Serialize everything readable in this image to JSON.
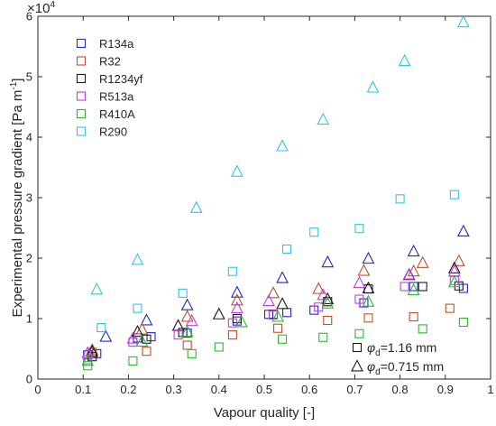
{
  "chart_data": {
    "type": "scatter",
    "xlabel": "Vapour quality [-]",
    "ylabel": "Experimental pressure gradient [Pa m",
    "ylabel_sup": "-1",
    "ylabel_close": "]",
    "y_multiplier_base": "×10",
    "y_multiplier_exp": "4",
    "xlim": [
      0,
      1
    ],
    "ylim": [
      0,
      60000
    ],
    "xticks": [
      "0",
      "0.1",
      "0.2",
      "0.3",
      "0.4",
      "0.5",
      "0.6",
      "0.7",
      "0.8",
      "0.9",
      "1"
    ],
    "yticks": [
      "0",
      "1",
      "2",
      "3",
      "4",
      "5",
      "6"
    ],
    "legend_position": "top-left",
    "grid": false,
    "marker_legend": [
      {
        "marker": "square",
        "prefix": "φ",
        "sub": "d",
        "text": "=1.16 mm"
      },
      {
        "marker": "triangle",
        "prefix": "φ",
        "sub": "d",
        "text": "=0.715 mm"
      }
    ],
    "series": [
      {
        "name": "R134a",
        "color": "#2626c8",
        "square": [
          [
            0.11,
            4000
          ],
          [
            0.13,
            4200
          ],
          [
            0.22,
            6800
          ],
          [
            0.25,
            7000
          ],
          [
            0.33,
            7600
          ],
          [
            0.44,
            9600
          ],
          [
            0.51,
            10700
          ],
          [
            0.55,
            11000
          ],
          [
            0.61,
            11400
          ],
          [
            0.72,
            12600
          ],
          [
            0.83,
            15300
          ],
          [
            0.94,
            15000
          ]
        ],
        "triangle": [
          [
            0.15,
            7000
          ],
          [
            0.24,
            9700
          ],
          [
            0.33,
            12200
          ],
          [
            0.44,
            14300
          ],
          [
            0.54,
            16700
          ],
          [
            0.64,
            19300
          ],
          [
            0.73,
            19900
          ],
          [
            0.83,
            21100
          ],
          [
            0.94,
            24400
          ]
        ]
      },
      {
        "name": "R32",
        "color": "#c0502a",
        "square": [
          [
            0.12,
            4400
          ],
          [
            0.24,
            4600
          ],
          [
            0.33,
            5600
          ],
          [
            0.43,
            7300
          ],
          [
            0.53,
            8400
          ],
          [
            0.64,
            9700
          ],
          [
            0.73,
            10100
          ],
          [
            0.83,
            10300
          ],
          [
            0.91,
            11700
          ]
        ],
        "triangle": [
          [
            0.12,
            4800
          ],
          [
            0.23,
            8200
          ],
          [
            0.33,
            10300
          ],
          [
            0.44,
            13000
          ],
          [
            0.52,
            14200
          ],
          [
            0.62,
            14900
          ],
          [
            0.72,
            17900
          ],
          [
            0.83,
            17800
          ],
          [
            0.93,
            19500
          ],
          [
            0.85,
            19200
          ]
        ]
      },
      {
        "name": "R1234yf",
        "color": "#1a1a1a",
        "square": [
          [
            0.12,
            3700
          ],
          [
            0.24,
            6600
          ],
          [
            0.32,
            7700
          ],
          [
            0.44,
            10000
          ],
          [
            0.52,
            10700
          ],
          [
            0.64,
            12800
          ],
          [
            0.73,
            14900
          ],
          [
            0.85,
            15300
          ],
          [
            0.93,
            15400
          ]
        ],
        "triangle": [
          [
            0.12,
            4500
          ],
          [
            0.22,
            7800
          ],
          [
            0.31,
            8800
          ],
          [
            0.4,
            10700
          ],
          [
            0.54,
            12400
          ],
          [
            0.64,
            13200
          ],
          [
            0.73,
            15000
          ],
          [
            0.82,
            17200
          ],
          [
            0.92,
            18300
          ]
        ]
      },
      {
        "name": "R513a",
        "color": "#c040e0",
        "square": [
          [
            0.11,
            3200
          ],
          [
            0.21,
            6100
          ],
          [
            0.31,
            7300
          ],
          [
            0.43,
            9300
          ],
          [
            0.52,
            10600
          ],
          [
            0.62,
            11900
          ],
          [
            0.71,
            13200
          ],
          [
            0.81,
            15300
          ],
          [
            0.92,
            16300
          ]
        ],
        "triangle": [
          [
            0.11,
            4300
          ],
          [
            0.21,
            6700
          ],
          [
            0.34,
            9600
          ],
          [
            0.44,
            11700
          ],
          [
            0.51,
            12900
          ],
          [
            0.63,
            13900
          ],
          [
            0.71,
            15900
          ],
          [
            0.82,
            17300
          ],
          [
            0.92,
            17800
          ]
        ]
      },
      {
        "name": "R410A",
        "color": "#2eb82e",
        "square": [
          [
            0.11,
            2200
          ],
          [
            0.21,
            3000
          ],
          [
            0.34,
            4200
          ],
          [
            0.4,
            5300
          ],
          [
            0.54,
            6600
          ],
          [
            0.63,
            6900
          ],
          [
            0.71,
            7500
          ],
          [
            0.85,
            8300
          ],
          [
            0.94,
            9400
          ]
        ],
        "triangle": [
          [
            0.11,
            3000
          ],
          [
            0.23,
            6200
          ],
          [
            0.33,
            7800
          ],
          [
            0.45,
            9400
          ],
          [
            0.53,
            10300
          ],
          [
            0.64,
            12500
          ],
          [
            0.73,
            12800
          ],
          [
            0.83,
            14700
          ],
          [
            0.92,
            16000
          ]
        ]
      },
      {
        "name": "R290",
        "color": "#33c3e8",
        "square": [
          [
            0.14,
            8500
          ],
          [
            0.22,
            11700
          ],
          [
            0.32,
            14200
          ],
          [
            0.43,
            17800
          ],
          [
            0.55,
            21500
          ],
          [
            0.61,
            24300
          ],
          [
            0.71,
            24900
          ],
          [
            0.8,
            29800
          ],
          [
            0.92,
            30500
          ]
        ],
        "triangle": [
          [
            0.13,
            14800
          ],
          [
            0.22,
            19700
          ],
          [
            0.35,
            28300
          ],
          [
            0.44,
            34300
          ],
          [
            0.54,
            38500
          ],
          [
            0.63,
            42900
          ],
          [
            0.74,
            48200
          ],
          [
            0.81,
            52600
          ],
          [
            0.94,
            59000
          ]
        ]
      }
    ]
  }
}
